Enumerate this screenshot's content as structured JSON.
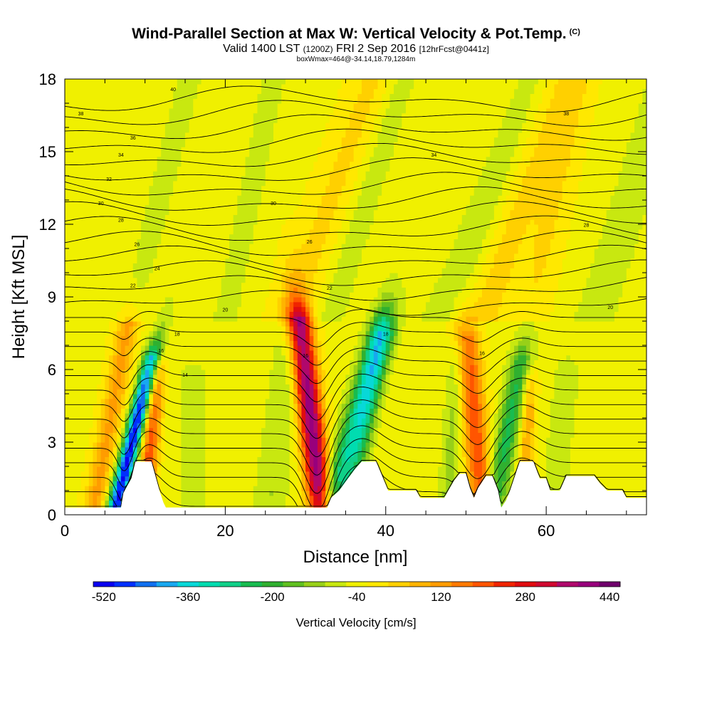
{
  "header": {
    "title": "Wind-Parallel Section at Max W: Vertical Velocity & Pot.Temp.",
    "copyright": "(C)",
    "valid_prefix": "Valid 1400 LST",
    "valid_utc": "(1200Z)",
    "valid_date": "FRI 2 Sep 2016",
    "forecast": "[12hrFcst@0441z]",
    "subline": "boxWmax=464@-34.14,18.79,1284m"
  },
  "chart_data": {
    "type": "heatmap",
    "xlabel": "Distance [nm]",
    "ylabel": "Height [Kft MSL]",
    "xlim": [
      0,
      72.5
    ],
    "ylim": [
      0,
      18
    ],
    "x_ticks": [
      "0",
      "20",
      "40",
      "60"
    ],
    "y_ticks": [
      "0",
      "3",
      "6",
      "9",
      "12",
      "15",
      "18"
    ],
    "colorbar": {
      "label": "Vertical Velocity [cm/s]",
      "tick_labels": [
        "-520",
        "-360",
        "-200",
        "-40",
        "120",
        "280",
        "440"
      ],
      "levels_cms": [
        -520,
        -480,
        -440,
        -400,
        -360,
        -320,
        -280,
        -240,
        -200,
        -160,
        -120,
        -80,
        -40,
        0,
        40,
        80,
        120,
        160,
        200,
        240,
        280,
        320,
        360,
        400,
        440,
        480
      ],
      "colors": [
        "#0a00f0",
        "#0030ff",
        "#1070f0",
        "#18a8f0",
        "#08d8d8",
        "#00dcb0",
        "#10d088",
        "#18bc50",
        "#30b030",
        "#60c020",
        "#98d018",
        "#c8e810",
        "#f0f000",
        "#ffe800",
        "#ffd000",
        "#ffb400",
        "#ff9c00",
        "#ff7a00",
        "#ff5500",
        "#f02400",
        "#e00c10",
        "#d00830",
        "#b0086c",
        "#98007c",
        "#70006c"
      ]
    },
    "contour_labels": [
      "40",
      "38",
      "36",
      "34",
      "32",
      "30",
      "28",
      "26",
      "24",
      "22",
      "20",
      "18",
      "16",
      "14"
    ],
    "vertical_velocity_extrema": [
      {
        "x_nm": 8.0,
        "height_kft": 3.0,
        "w_cms": -480
      },
      {
        "x_nm": 10.5,
        "height_kft": 2.6,
        "w_cms": 240
      },
      {
        "x_nm": 31.0,
        "height_kft": 3.5,
        "w_cms": 440
      },
      {
        "x_nm": 35.0,
        "height_kft": 3.0,
        "w_cms": -240
      },
      {
        "x_nm": 51.0,
        "height_kft": 4.5,
        "w_cms": 240
      },
      {
        "x_nm": 55.0,
        "height_kft": 3.5,
        "w_cms": -200
      }
    ],
    "terrain_kft": [
      [
        0,
        0.3
      ],
      [
        5,
        0.3
      ],
      [
        6.5,
        0.3
      ],
      [
        7,
        0.3
      ],
      [
        7.3,
        0.9
      ],
      [
        8.3,
        1.5
      ],
      [
        8.8,
        2.2
      ],
      [
        10.8,
        2.2
      ],
      [
        11.3,
        1.6
      ],
      [
        11.8,
        1.0
      ],
      [
        12.3,
        0.5
      ],
      [
        12.6,
        0.3
      ],
      [
        23,
        0.3
      ],
      [
        27,
        0.3
      ],
      [
        31.5,
        0.3
      ],
      [
        32.7,
        0.3
      ],
      [
        33.2,
        0.7
      ],
      [
        34.2,
        1.0
      ],
      [
        35.3,
        1.5
      ],
      [
        36.2,
        1.9
      ],
      [
        37,
        2.2
      ],
      [
        38.8,
        2.2
      ],
      [
        39.3,
        1.8
      ],
      [
        39.8,
        1.4
      ],
      [
        40.3,
        1.0
      ],
      [
        43.8,
        1.0
      ],
      [
        44.3,
        0.7
      ],
      [
        47.3,
        0.7
      ],
      [
        47.8,
        1.0
      ],
      [
        48.5,
        1.4
      ],
      [
        49.2,
        1.7
      ],
      [
        50,
        1.7
      ],
      [
        50.5,
        1.1
      ],
      [
        51,
        0.7
      ],
      [
        51.5,
        1.1
      ],
      [
        52.5,
        1.6
      ],
      [
        53.3,
        1.6
      ],
      [
        54,
        1.0
      ],
      [
        54.4,
        0.3
      ],
      [
        55,
        0.6
      ],
      [
        55.5,
        1.0
      ],
      [
        56,
        1.5
      ],
      [
        56.7,
        2.2
      ],
      [
        58.4,
        2.2
      ],
      [
        59.2,
        1.5
      ],
      [
        60,
        1.5
      ],
      [
        60.5,
        1.0
      ],
      [
        61.7,
        1.0
      ],
      [
        62.5,
        1.6
      ],
      [
        66,
        1.6
      ],
      [
        66.7,
        1.3
      ],
      [
        67.6,
        1.0
      ],
      [
        69.5,
        1.0
      ],
      [
        70,
        0.7
      ],
      [
        72.5,
        0.7
      ]
    ]
  }
}
